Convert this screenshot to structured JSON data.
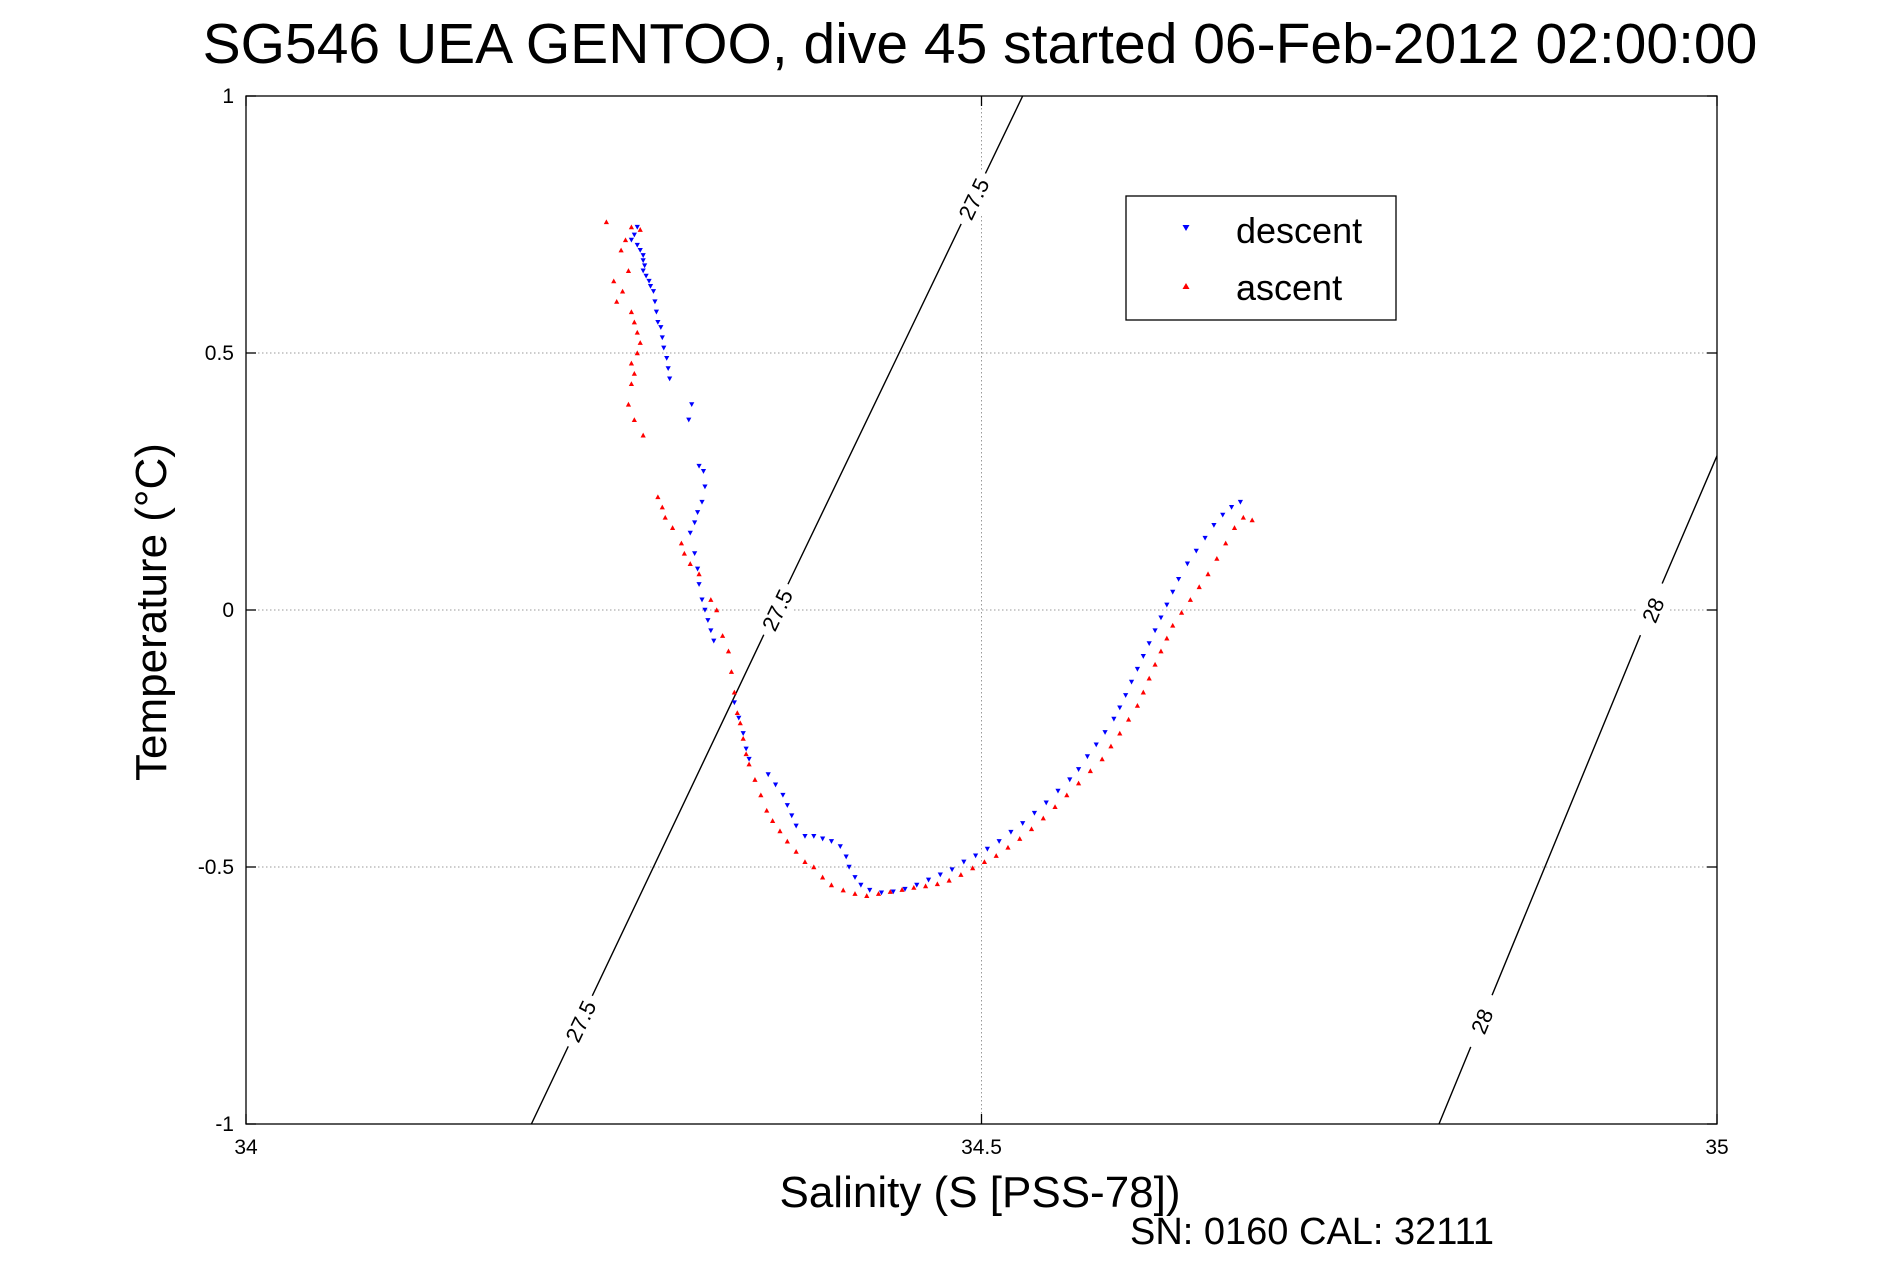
{
  "chart_data": {
    "type": "scatter",
    "title": "SG546 UEA GENTOO, dive 45 started 06-Feb-2012 02:00:00",
    "xlabel": "Salinity (S [PSS-78])",
    "ylabel": "Temperature (°C)",
    "xlim": [
      34,
      35
    ],
    "ylim": [
      -1,
      1
    ],
    "xticks": [
      "34",
      "34.5",
      "35"
    ],
    "yticks": [
      "-1",
      "-0.5",
      "0",
      "0.5",
      "1"
    ],
    "grid": true,
    "legend_position": "top-right",
    "footer": "SN: 0160  CAL: 32111",
    "density_contours": [
      {
        "label": "27.5",
        "points": [
          [
            34.194,
            -1.0
          ],
          [
            34.36,
            0.0
          ],
          [
            34.528,
            1.0
          ]
        ]
      },
      {
        "label": "28",
        "points": [
          [
            34.811,
            -1.0
          ],
          [
            34.955,
            0.0
          ],
          [
            35.0,
            0.3
          ]
        ]
      }
    ],
    "series": [
      {
        "name": "descent",
        "color": "#0000ff",
        "marker": "triangle-down",
        "points": [
          [
            34.266,
            0.745
          ],
          [
            34.264,
            0.73
          ],
          [
            34.262,
            0.72
          ],
          [
            34.266,
            0.71
          ],
          [
            34.268,
            0.7
          ],
          [
            34.27,
            0.69
          ],
          [
            34.27,
            0.68
          ],
          [
            34.271,
            0.67
          ],
          [
            34.27,
            0.66
          ],
          [
            34.272,
            0.65
          ],
          [
            34.274,
            0.64
          ],
          [
            34.275,
            0.63
          ],
          [
            34.277,
            0.62
          ],
          [
            34.278,
            0.6
          ],
          [
            34.279,
            0.58
          ],
          [
            34.28,
            0.56
          ],
          [
            34.282,
            0.55
          ],
          [
            34.283,
            0.53
          ],
          [
            34.284,
            0.51
          ],
          [
            34.286,
            0.49
          ],
          [
            34.287,
            0.47
          ],
          [
            34.288,
            0.45
          ],
          [
            34.303,
            0.4
          ],
          [
            34.301,
            0.37
          ],
          [
            34.308,
            0.28
          ],
          [
            34.311,
            0.27
          ],
          [
            34.312,
            0.24
          ],
          [
            34.31,
            0.21
          ],
          [
            34.307,
            0.19
          ],
          [
            34.305,
            0.17
          ],
          [
            34.302,
            0.15
          ],
          [
            34.305,
            0.11
          ],
          [
            34.307,
            0.08
          ],
          [
            34.308,
            0.05
          ],
          [
            34.31,
            0.02
          ],
          [
            34.312,
            0.0
          ],
          [
            34.314,
            -0.02
          ],
          [
            34.316,
            -0.04
          ],
          [
            34.318,
            -0.06
          ],
          [
            34.332,
            -0.18
          ],
          [
            34.335,
            -0.21
          ],
          [
            34.338,
            -0.24
          ],
          [
            34.34,
            -0.27
          ],
          [
            34.342,
            -0.29
          ],
          [
            34.355,
            -0.32
          ],
          [
            34.36,
            -0.34
          ],
          [
            34.365,
            -0.36
          ],
          [
            34.368,
            -0.38
          ],
          [
            34.371,
            -0.4
          ],
          [
            34.374,
            -0.42
          ],
          [
            34.38,
            -0.44
          ],
          [
            34.386,
            -0.44
          ],
          [
            34.392,
            -0.445
          ],
          [
            34.398,
            -0.45
          ],
          [
            34.404,
            -0.46
          ],
          [
            34.408,
            -0.48
          ],
          [
            34.41,
            -0.5
          ],
          [
            34.414,
            -0.52
          ],
          [
            34.418,
            -0.535
          ],
          [
            34.424,
            -0.545
          ],
          [
            34.432,
            -0.55
          ],
          [
            34.44,
            -0.548
          ],
          [
            34.448,
            -0.543
          ],
          [
            34.456,
            -0.535
          ],
          [
            34.464,
            -0.525
          ],
          [
            34.472,
            -0.515
          ],
          [
            34.48,
            -0.505
          ],
          [
            34.488,
            -0.49
          ],
          [
            34.496,
            -0.478
          ],
          [
            34.504,
            -0.465
          ],
          [
            34.512,
            -0.45
          ],
          [
            34.52,
            -0.432
          ],
          [
            34.528,
            -0.415
          ],
          [
            34.536,
            -0.395
          ],
          [
            34.544,
            -0.375
          ],
          [
            34.552,
            -0.352
          ],
          [
            34.56,
            -0.33
          ],
          [
            34.566,
            -0.31
          ],
          [
            34.572,
            -0.285
          ],
          [
            34.578,
            -0.262
          ],
          [
            34.584,
            -0.238
          ],
          [
            34.59,
            -0.212
          ],
          [
            34.594,
            -0.19
          ],
          [
            34.598,
            -0.166
          ],
          [
            34.602,
            -0.14
          ],
          [
            34.606,
            -0.115
          ],
          [
            34.61,
            -0.09
          ],
          [
            34.614,
            -0.065
          ],
          [
            34.618,
            -0.04
          ],
          [
            34.622,
            -0.015
          ],
          [
            34.626,
            0.01
          ],
          [
            34.63,
            0.035
          ],
          [
            34.634,
            0.06
          ],
          [
            34.64,
            0.09
          ],
          [
            34.646,
            0.115
          ],
          [
            34.652,
            0.14
          ],
          [
            34.658,
            0.165
          ],
          [
            34.664,
            0.185
          ],
          [
            34.67,
            0.2
          ],
          [
            34.676,
            0.21
          ]
        ]
      },
      {
        "name": "ascent",
        "color": "#ff0000",
        "marker": "triangle-up",
        "points": [
          [
            34.245,
            0.755
          ],
          [
            34.262,
            0.745
          ],
          [
            34.268,
            0.74
          ],
          [
            34.258,
            0.72
          ],
          [
            34.255,
            0.7
          ],
          [
            34.26,
            0.66
          ],
          [
            34.25,
            0.64
          ],
          [
            34.256,
            0.62
          ],
          [
            34.252,
            0.6
          ],
          [
            34.262,
            0.58
          ],
          [
            34.264,
            0.56
          ],
          [
            34.266,
            0.54
          ],
          [
            34.268,
            0.52
          ],
          [
            34.266,
            0.5
          ],
          [
            34.262,
            0.48
          ],
          [
            34.264,
            0.46
          ],
          [
            34.262,
            0.44
          ],
          [
            34.26,
            0.4
          ],
          [
            34.264,
            0.37
          ],
          [
            34.27,
            0.34
          ],
          [
            34.28,
            0.22
          ],
          [
            34.283,
            0.2
          ],
          [
            34.285,
            0.18
          ],
          [
            34.29,
            0.16
          ],
          [
            34.296,
            0.13
          ],
          [
            34.298,
            0.11
          ],
          [
            34.302,
            0.09
          ],
          [
            34.308,
            0.07
          ],
          [
            34.316,
            0.02
          ],
          [
            34.32,
            0.0
          ],
          [
            34.324,
            -0.05
          ],
          [
            34.328,
            -0.08
          ],
          [
            34.33,
            -0.12
          ],
          [
            34.332,
            -0.16
          ],
          [
            34.334,
            -0.2
          ],
          [
            34.336,
            -0.22
          ],
          [
            34.338,
            -0.25
          ],
          [
            34.34,
            -0.28
          ],
          [
            34.342,
            -0.3
          ],
          [
            34.346,
            -0.33
          ],
          [
            34.35,
            -0.36
          ],
          [
            34.354,
            -0.39
          ],
          [
            34.358,
            -0.41
          ],
          [
            34.363,
            -0.43
          ],
          [
            34.368,
            -0.45
          ],
          [
            34.374,
            -0.47
          ],
          [
            34.38,
            -0.49
          ],
          [
            34.386,
            -0.5
          ],
          [
            34.392,
            -0.52
          ],
          [
            34.398,
            -0.535
          ],
          [
            34.406,
            -0.545
          ],
          [
            34.414,
            -0.552
          ],
          [
            34.422,
            -0.556
          ],
          [
            34.43,
            -0.552
          ],
          [
            34.438,
            -0.548
          ],
          [
            34.446,
            -0.544
          ],
          [
            34.454,
            -0.54
          ],
          [
            34.462,
            -0.537
          ],
          [
            34.47,
            -0.533
          ],
          [
            34.478,
            -0.526
          ],
          [
            34.486,
            -0.515
          ],
          [
            34.494,
            -0.502
          ],
          [
            34.502,
            -0.49
          ],
          [
            34.51,
            -0.478
          ],
          [
            34.518,
            -0.462
          ],
          [
            34.526,
            -0.445
          ],
          [
            34.534,
            -0.426
          ],
          [
            34.542,
            -0.405
          ],
          [
            34.55,
            -0.383
          ],
          [
            34.558,
            -0.36
          ],
          [
            34.566,
            -0.337
          ],
          [
            34.574,
            -0.313
          ],
          [
            34.582,
            -0.29
          ],
          [
            34.588,
            -0.265
          ],
          [
            34.594,
            -0.24
          ],
          [
            34.6,
            -0.213
          ],
          [
            34.606,
            -0.186
          ],
          [
            34.61,
            -0.16
          ],
          [
            34.614,
            -0.133
          ],
          [
            34.618,
            -0.106
          ],
          [
            34.622,
            -0.08
          ],
          [
            34.626,
            -0.055
          ],
          [
            34.63,
            -0.03
          ],
          [
            34.636,
            -0.005
          ],
          [
            34.642,
            0.02
          ],
          [
            34.648,
            0.045
          ],
          [
            34.654,
            0.07
          ],
          [
            34.66,
            0.1
          ],
          [
            34.666,
            0.13
          ],
          [
            34.672,
            0.16
          ],
          [
            34.678,
            0.18
          ],
          [
            34.684,
            0.175
          ]
        ]
      }
    ]
  }
}
